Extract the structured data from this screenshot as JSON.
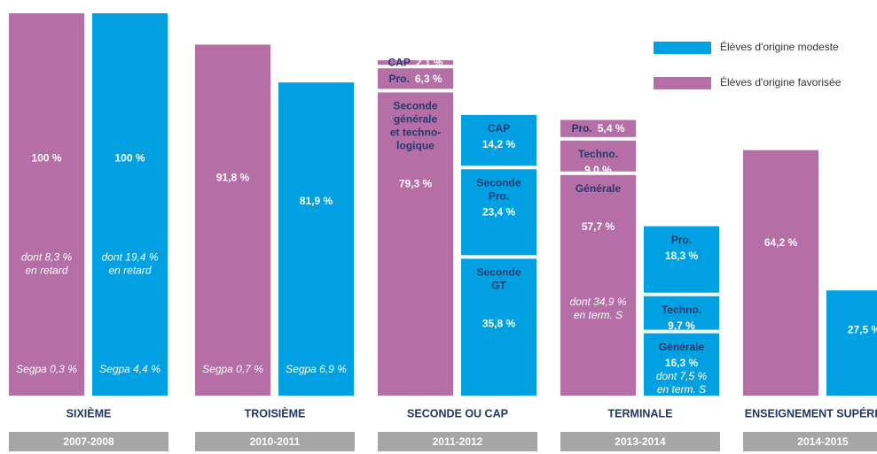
{
  "chart_data": {
    "type": "stacked-bar",
    "ylim": [
      0,
      100
    ],
    "series": [
      {
        "name": "Élèves d'origine modeste",
        "color": "#00a0e3"
      },
      {
        "name": "Élèves d'origine favorisée",
        "color": "#b56ea6"
      }
    ],
    "groups": [
      {
        "label": "SIXIÈME",
        "period": "2007-2008",
        "bars": [
          {
            "segments": [
              {
                "value": 100,
                "value_label": "100 %",
                "note": [
                  "dont 8,3 %",
                  "en retard"
                ]
              }
            ],
            "footnote": "Segpa 0,3 %"
          },
          {
            "segments": [
              {
                "value": 100,
                "value_label": "100 %",
                "note": [
                  "dont 19,4 %",
                  "en retard"
                ]
              }
            ],
            "footnote": "Segpa 4,4 %"
          }
        ]
      },
      {
        "label": "TROISIÈME",
        "period": "2010-2011",
        "bars": [
          {
            "segments": [
              {
                "value": 91.8,
                "value_label": "91,8 %"
              }
            ],
            "footnote": "Segpa 0,7 %"
          },
          {
            "segments": [
              {
                "value": 81.9,
                "value_label": "81,9 %"
              }
            ],
            "footnote": "Segpa 6,9 %"
          }
        ]
      },
      {
        "label": "SECONDE OU CAP",
        "period": "2011-2012",
        "bars": [
          {
            "segments": [
              {
                "name": [
                  "Seconde",
                  "générale",
                  "et techno-",
                  "logique"
                ],
                "value": 79.3,
                "value_label": "79,3 %"
              },
              {
                "name": [
                  "Pro."
                ],
                "value": 6.3,
                "value_label": "6,3 %"
              },
              {
                "name": [
                  "CAP"
                ],
                "value": 2.1,
                "value_label": "2,1 %"
              }
            ]
          },
          {
            "segments": [
              {
                "name": [
                  "Seconde",
                  "GT"
                ],
                "value": 35.8,
                "value_label": "35,8 %"
              },
              {
                "name": [
                  "Seconde",
                  "Pro."
                ],
                "value": 23.4,
                "value_label": "23,4 %"
              },
              {
                "name": [
                  "CAP"
                ],
                "value": 14.2,
                "value_label": "14,2 %"
              }
            ]
          }
        ]
      },
      {
        "label": "TERMINALE",
        "period": "2013-2014",
        "bars": [
          {
            "segments": [
              {
                "name": [
                  "Générale"
                ],
                "value": 57.7,
                "value_label": "57,7 %",
                "note": [
                  "dont 34,9 %",
                  "en term. S"
                ]
              },
              {
                "name": [
                  "Techno."
                ],
                "value": 9.0,
                "value_label": "9,0 %"
              },
              {
                "name": [
                  "Pro."
                ],
                "value": 5.4,
                "value_label": "5,4 %"
              }
            ]
          },
          {
            "segments": [
              {
                "name": [
                  "Générale"
                ],
                "value": 16.3,
                "value_label": "16,3 %",
                "note": [
                  "dont 7,5 %",
                  "en term. S"
                ]
              },
              {
                "name": [
                  "Techno."
                ],
                "value": 9.7,
                "value_label": "9,7 %"
              },
              {
                "name": [
                  "Pro."
                ],
                "value": 18.3,
                "value_label": "18,3 %"
              }
            ]
          }
        ]
      },
      {
        "label": "ENSEIGNEMENT SUPÉRIEUR",
        "period": "2014-2015",
        "bars": [
          {
            "segments": [
              {
                "value": 64.2,
                "value_label": "64,2 %"
              }
            ]
          },
          {
            "segments": [
              {
                "value": 27.5,
                "value_label": "27,5 %"
              }
            ]
          }
        ]
      }
    ]
  }
}
